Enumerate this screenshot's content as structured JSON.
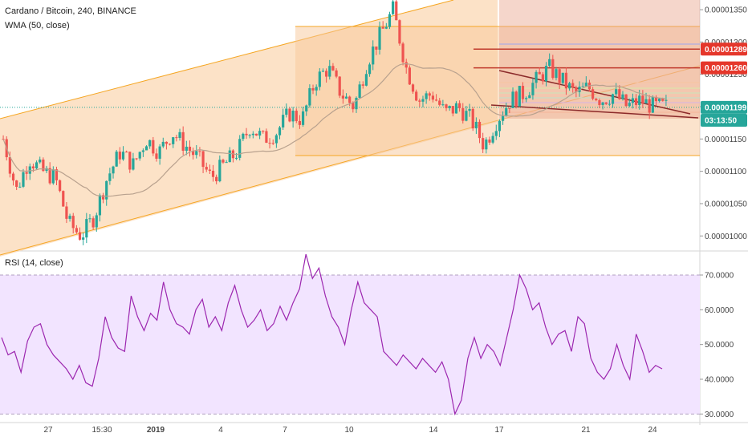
{
  "chart_data": [
    {
      "type": "candlestick",
      "title": "Cardano / Bitcoin, 240, BINANCE",
      "indicator_label": "WMA (50, close)",
      "price_ticks": [
        "0.00001350",
        "0.00001300",
        "0.00001250",
        "0.00001200",
        "0.00001150",
        "0.00001100",
        "0.00001050",
        "0.00001000"
      ],
      "ylim": [
        9.78e-06,
        1.365e-05
      ],
      "price_tags": [
        {
          "value": "0.00001289",
          "price": 1.289e-05,
          "color": "#e5372b"
        },
        {
          "value": "0.00001260",
          "price": 1.26e-05,
          "color": "#e5372b"
        },
        {
          "value": "0.00001199",
          "price": 1.199e-05,
          "color": "#26a69a"
        },
        {
          "value": "03:13:50",
          "price": 1.179e-05,
          "color": "#26a69a"
        }
      ],
      "close_path": [
        1.15e-05,
        1.07e-05,
        1.12e-05,
        1.1e-05,
        1.09e-05,
        1.02e-05,
        1e-05,
        1.03e-05,
        1.09e-05,
        1.13e-05,
        1.11e-05,
        1.15e-05,
        1.13e-05,
        1.16e-05,
        1.14e-05,
        1.12e-05,
        1.09e-05,
        1.11e-05,
        1.13e-05,
        1.17e-05,
        1.15e-05,
        1.16e-05,
        1.19e-05,
        1.18e-05,
        1.24e-05,
        1.26e-05,
        1.22e-05,
        1.2e-05,
        1.27e-05,
        1.31e-05,
        1.35e-05,
        1.26e-05,
        1.21e-05,
        1.22e-05,
        1.19e-05,
        1.2e-05,
        1.18e-05,
        1.14e-05,
        1.18e-05,
        1.21e-05,
        1.22e-05,
        1.24e-05,
        1.26e-05,
        1.24e-05,
        1.22e-05,
        1.23e-05,
        1.21e-05,
        1.22e-05,
        1.2e-05,
        1.21e-05,
        1.2e-05,
        1.2e-05
      ]
    },
    {
      "type": "line",
      "title": "RSI (14, close)",
      "ticks": [
        "70.0000",
        "60.0000",
        "50.0000",
        "40.0000",
        "30.0000"
      ],
      "ylim": [
        28,
        76
      ],
      "band": [
        30,
        70
      ],
      "values": [
        52,
        47,
        48,
        42,
        51,
        55,
        56,
        50,
        47,
        45,
        43,
        40,
        44,
        39,
        38,
        46,
        58,
        52,
        49,
        48,
        64,
        58,
        54,
        59,
        57,
        68,
        60,
        56,
        55,
        53,
        60,
        63,
        55,
        58,
        54,
        62,
        67,
        60,
        55,
        57,
        60,
        54,
        56,
        61,
        57,
        62,
        66,
        76,
        69,
        72,
        64,
        58,
        55,
        50,
        60,
        68,
        62,
        60,
        58,
        48,
        46,
        44,
        47,
        45,
        43,
        46,
        44,
        42,
        45,
        40,
        30,
        34,
        46,
        52,
        46,
        50,
        48,
        44,
        52,
        60,
        70,
        66,
        60,
        62,
        55,
        50,
        53,
        54,
        48,
        58,
        56,
        46,
        42,
        40,
        43,
        50,
        44,
        40,
        53,
        48,
        42,
        44,
        43
      ],
      "color": "#9c27b0"
    }
  ],
  "x_ticks": [
    "27",
    "15:30",
    "2019",
    "4",
    "7",
    "10",
    "14",
    "17",
    "21",
    "24"
  ],
  "colors": {
    "up": "#26a69a",
    "down": "#ef5350",
    "wma": "#b8a18e",
    "channel": "#f5a623",
    "rsi_band": "#f2e4ff"
  }
}
